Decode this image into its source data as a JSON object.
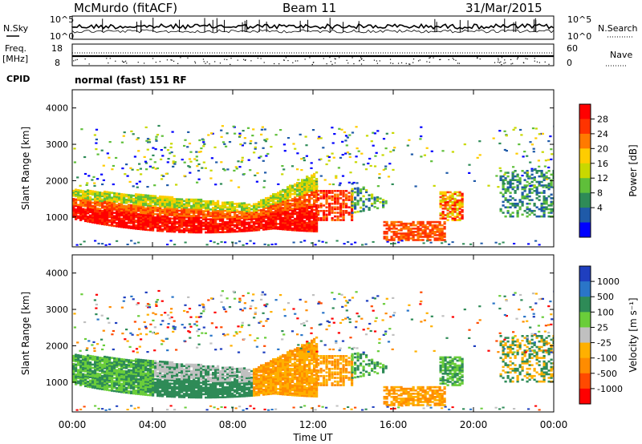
{
  "header": {
    "station": "McMurdo (fitACF)",
    "beam": "Beam 11",
    "date": "31/Mar/2015",
    "cpid_label": "CPID",
    "cpid_value": "normal (fast) 151 RF"
  },
  "top_strip": {
    "nsky_label": "N.Sky",
    "nsearch_label": "N.Search",
    "nsky_ticks": [
      "10^5",
      "10^0"
    ],
    "nsearch_ticks": [
      "10^5",
      "10^0"
    ],
    "freq_label": "Freq.",
    "freq_unit": "[MHz]",
    "freq_ticks": [
      "18",
      "8"
    ],
    "nave_label": "Nave",
    "nave_ticks": [
      "60",
      "0"
    ]
  },
  "chart_data": [
    {
      "type": "heatmap",
      "name": "power-panel",
      "xlabel": "Time UT",
      "ylabel": "Slant Range [km]",
      "xlim": [
        0,
        24
      ],
      "ylim": [
        180,
        4500
      ],
      "x_ticks": [
        "00:00",
        "04:00",
        "08:00",
        "12:00",
        "16:00",
        "20:00",
        "00:00"
      ],
      "y_ticks": [
        1000,
        2000,
        3000,
        4000
      ],
      "colorbar": {
        "label": "Power [dB]",
        "ticks": [
          "28",
          "24",
          "20",
          "16",
          "12",
          "8",
          "4"
        ],
        "colors": [
          "#ff0000",
          "#ff3300",
          "#ff7a00",
          "#ffcc00",
          "#c8d800",
          "#5fbf3a",
          "#2e8b57",
          "#1f5aa8",
          "#0000ff"
        ]
      }
    },
    {
      "type": "heatmap",
      "name": "velocity-panel",
      "xlabel": "Time UT",
      "ylabel": "Slant Range [km]",
      "xlim": [
        0,
        24
      ],
      "ylim": [
        180,
        4500
      ],
      "x_ticks": [
        "00:00",
        "04:00",
        "08:00",
        "12:00",
        "16:00",
        "20:00",
        "00:00"
      ],
      "y_ticks": [
        1000,
        2000,
        3000,
        4000
      ],
      "colorbar": {
        "label": "Velocity [m s⁻¹]",
        "ticks": [
          "1000",
          "500",
          "100",
          "25",
          "-25",
          "-100",
          "-500",
          "-1000"
        ],
        "colors": [
          "#1f3fbf",
          "#2a75c8",
          "#2e8b57",
          "#6acd3a",
          "#c0c0c0",
          "#ffb000",
          "#ff8c00",
          "#ff4a00",
          "#ff0000"
        ]
      }
    }
  ]
}
